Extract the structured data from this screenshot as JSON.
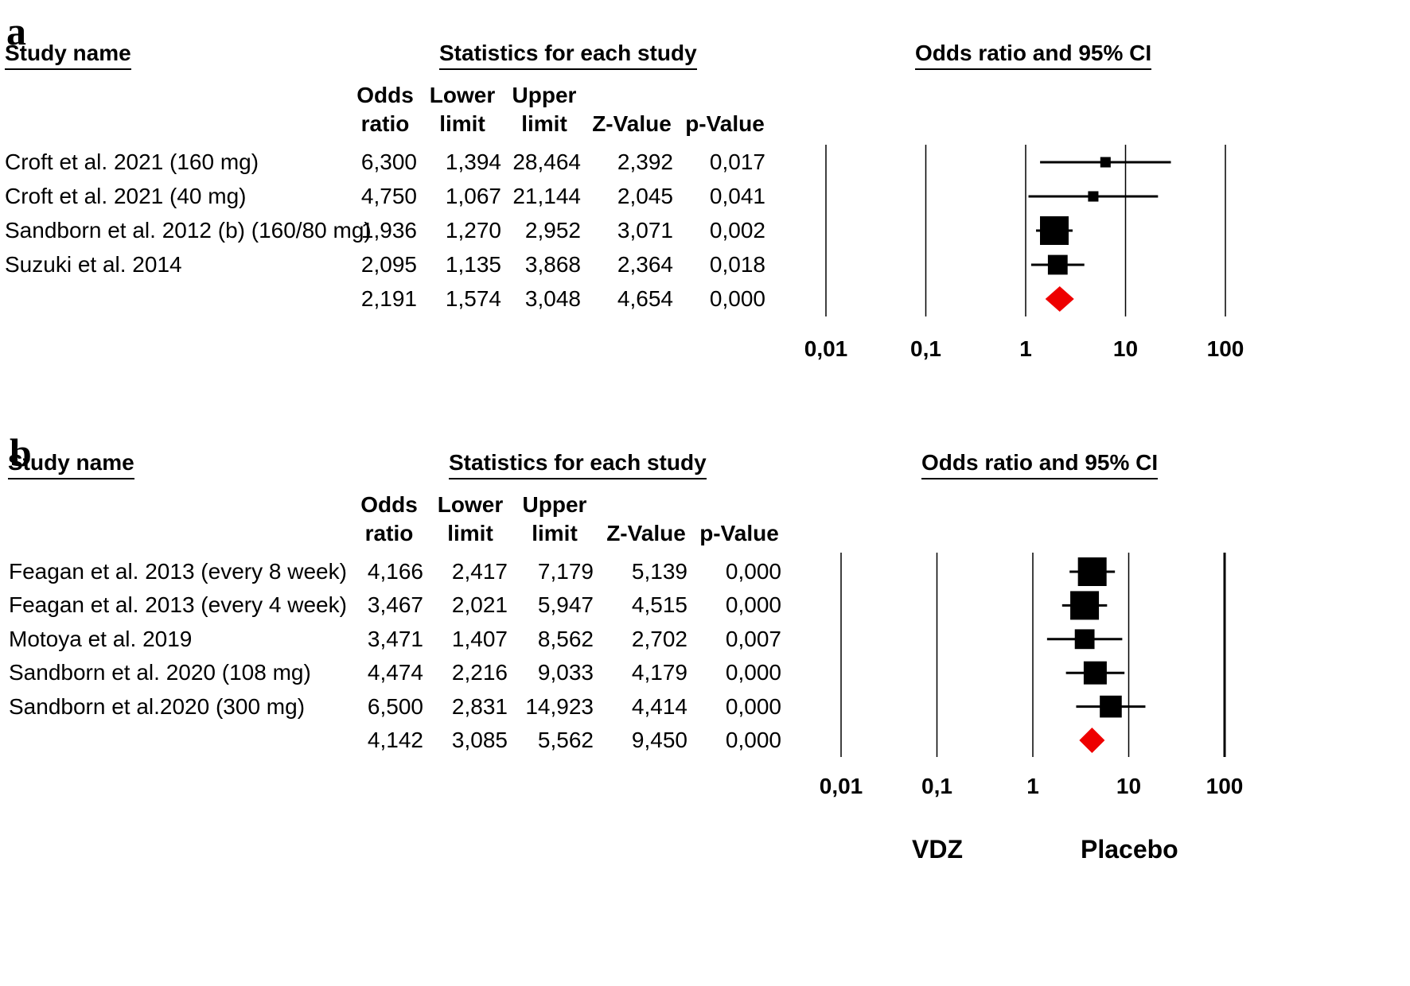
{
  "chart_data": [
    {
      "type": "forest",
      "panel_label": "a",
      "headers": {
        "study": "Study name",
        "statistics": "Statistics for each study",
        "plot": "Odds ratio and 95% CI"
      },
      "columns": [
        [
          "Odds",
          "ratio"
        ],
        [
          "Lower",
          "limit"
        ],
        [
          "Upper",
          "limit"
        ],
        [
          "",
          "Z-Value"
        ],
        [
          "",
          "p-Value"
        ]
      ],
      "x_scale": "log",
      "xlim": [
        0.01,
        100
      ],
      "x_ticks": [
        0.01,
        0.1,
        1,
        10,
        100
      ],
      "x_tick_labels": [
        "0,01",
        "0,1",
        "1",
        "10",
        "100"
      ],
      "rows": [
        {
          "study": "Croft et al. 2021 (160 mg)",
          "or": 6.3,
          "lower": 1.394,
          "upper": 28.464,
          "text": [
            "6,300",
            "1,394",
            "28,464",
            "2,392",
            "0,017"
          ],
          "weight": 0.18
        },
        {
          "study": "Croft et al. 2021 (40 mg)",
          "or": 4.75,
          "lower": 1.067,
          "upper": 21.144,
          "text": [
            "4,750",
            "1,067",
            "21,144",
            "2,045",
            "0,041"
          ],
          "weight": 0.18
        },
        {
          "study": "Sandborn et al. 2012 (b) (160/80 mg)",
          "or": 1.936,
          "lower": 1.27,
          "upper": 2.952,
          "text": [
            "1,936",
            "1,270",
            "2,952",
            "3,071",
            "0,002"
          ],
          "weight": 1.0
        },
        {
          "study": "Suzuki et al. 2014",
          "or": 2.095,
          "lower": 1.135,
          "upper": 3.868,
          "text": [
            "2,095",
            "1,135",
            "3,868",
            "2,364",
            "0,018"
          ],
          "weight": 0.6
        }
      ],
      "summary": {
        "or": 2.191,
        "lower": 1.574,
        "upper": 3.048,
        "text": [
          "2,191",
          "1,574",
          "3,048",
          "4,654",
          "0,000"
        ]
      },
      "summary_color": "#ee0000"
    },
    {
      "type": "forest",
      "panel_label": "b",
      "headers": {
        "study": "Study name",
        "statistics": "Statistics for each study",
        "plot": "Odds ratio and 95% CI"
      },
      "columns": [
        [
          "Odds",
          "ratio"
        ],
        [
          "Lower",
          "limit"
        ],
        [
          "Upper",
          "limit"
        ],
        [
          "",
          "Z-Value"
        ],
        [
          "",
          "p-Value"
        ]
      ],
      "x_scale": "log",
      "xlim": [
        0.01,
        100
      ],
      "x_ticks": [
        0.01,
        0.1,
        1,
        10,
        100
      ],
      "x_tick_labels": [
        "0,01",
        "0,1",
        "1",
        "10",
        "100"
      ],
      "rows": [
        {
          "study": "Feagan et al. 2013 (every 8 week)",
          "or": 4.166,
          "lower": 2.417,
          "upper": 7.179,
          "text": [
            "4,166",
            "2,417",
            "7,179",
            "5,139",
            "0,000"
          ],
          "weight": 1.0
        },
        {
          "study": "Feagan et al. 2013 (every 4 week)",
          "or": 3.467,
          "lower": 2.021,
          "upper": 5.947,
          "text": [
            "3,467",
            "2,021",
            "5,947",
            "4,515",
            "0,000"
          ],
          "weight": 1.0
        },
        {
          "study": "Motoya et al. 2019",
          "or": 3.471,
          "lower": 1.407,
          "upper": 8.562,
          "text": [
            "3,471",
            "1,407",
            "8,562",
            "2,702",
            "0,007"
          ],
          "weight": 0.6
        },
        {
          "study": "Sandborn et al. 2020 (108 mg)",
          "or": 4.474,
          "lower": 2.216,
          "upper": 9.033,
          "text": [
            "4,474",
            "2,216",
            "9,033",
            "4,179",
            "0,000"
          ],
          "weight": 0.75
        },
        {
          "study": "Sandborn et al.2020 (300 mg)",
          "or": 6.5,
          "lower": 2.831,
          "upper": 14.923,
          "text": [
            "6,500",
            "2,831",
            "14,923",
            "4,414",
            "0,000"
          ],
          "weight": 0.7
        }
      ],
      "summary": {
        "or": 4.142,
        "lower": 3.085,
        "upper": 5.562,
        "text": [
          "4,142",
          "3,085",
          "5,562",
          "9,450",
          "0,000"
        ]
      },
      "summary_color": "#ee0000",
      "favours": {
        "left": "VDZ",
        "right": "Placebo"
      }
    }
  ]
}
